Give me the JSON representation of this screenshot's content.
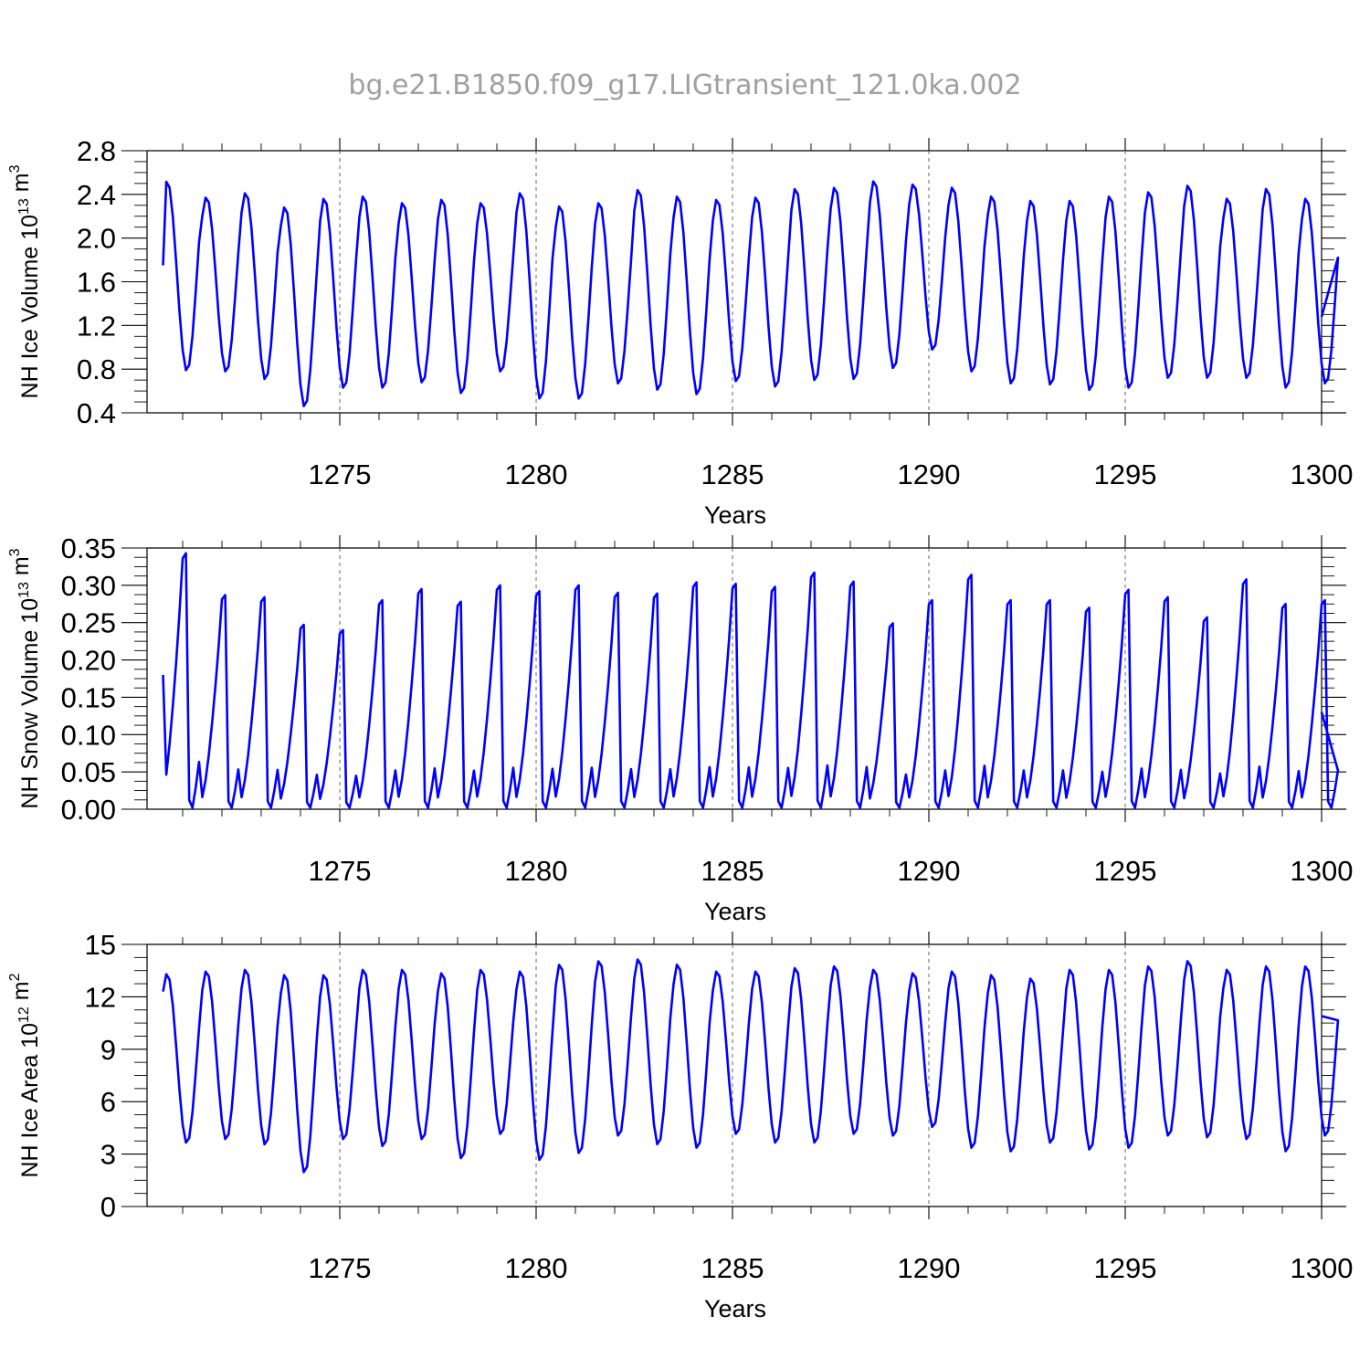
{
  "title": "bg.e21.B1850.f09_g17.LIGtransient_121.0ka.002",
  "chart_data": [
    {
      "type": "line",
      "ylabel_main": "NH Ice Volume 10",
      "ylabel_exp": "13",
      "ylabel_unit": " m",
      "ylabel_unit_exp": "3",
      "xlabel": "Years",
      "xlim": [
        1270.5,
        1300.0
      ],
      "ylim": [
        0.4,
        2.8
      ],
      "yticks": [
        0.4,
        0.8,
        1.2,
        1.6,
        2.0,
        2.4,
        2.8
      ],
      "ytick_labels": [
        "0.4",
        "0.8",
        "1.2",
        "1.6",
        "2.0",
        "2.4",
        "2.8"
      ],
      "xticks": [
        1275,
        1280,
        1285,
        1290,
        1295,
        1300
      ],
      "xtick_labels": [
        "1275",
        "1280",
        "1285",
        "1290",
        "1295",
        "1300"
      ],
      "grid": "dashed vertical lines at labeled years",
      "series_color": "#0000ff",
      "start_value": 1.75,
      "end_value": 1.28,
      "annual_peaks": [
        2.52,
        2.38,
        2.42,
        2.29,
        2.37,
        2.39,
        2.33,
        2.36,
        2.33,
        2.42,
        2.3,
        2.33,
        2.45,
        2.39,
        2.36,
        2.38,
        2.46,
        2.47,
        2.53,
        2.5,
        2.47,
        2.39,
        2.35,
        2.35,
        2.39,
        2.43,
        2.49,
        2.37,
        2.46,
        2.37
      ],
      "annual_troughs": [
        0.78,
        0.77,
        0.7,
        0.45,
        0.62,
        0.62,
        0.67,
        0.57,
        0.77,
        0.52,
        0.52,
        0.66,
        0.6,
        0.56,
        0.68,
        0.63,
        0.69,
        0.7,
        0.8,
        0.97,
        0.77,
        0.66,
        0.65,
        0.6,
        0.62,
        0.71,
        0.71,
        0.71,
        0.62,
        0.66
      ]
    },
    {
      "type": "line",
      "ylabel_main": "NH Snow Volume 10",
      "ylabel_exp": "13",
      "ylabel_unit": " m",
      "ylabel_unit_exp": "3",
      "xlabel": "Years",
      "xlim": [
        1270.5,
        1300.0
      ],
      "ylim": [
        0.0,
        0.35
      ],
      "yticks": [
        0.0,
        0.05,
        0.1,
        0.15,
        0.2,
        0.25,
        0.3,
        0.35
      ],
      "ytick_labels": [
        "0.00",
        "0.05",
        "0.10",
        "0.15",
        "0.20",
        "0.25",
        "0.30",
        "0.35"
      ],
      "xticks": [
        1275,
        1280,
        1285,
        1290,
        1295,
        1300
      ],
      "xtick_labels": [
        "1275",
        "1280",
        "1285",
        "1290",
        "1295",
        "1300"
      ],
      "grid": "dashed vertical lines at labeled years",
      "series_color": "#0000ff",
      "start_value": 0.18,
      "end_value": 0.13,
      "annual_peaks": [
        0.343,
        0.287,
        0.284,
        0.247,
        0.24,
        0.28,
        0.295,
        0.278,
        0.3,
        0.292,
        0.3,
        0.29,
        0.289,
        0.304,
        0.302,
        0.298,
        0.317,
        0.305,
        0.249,
        0.28,
        0.314,
        0.28,
        0.28,
        0.27,
        0.294,
        0.284,
        0.257,
        0.308,
        0.275,
        0.28
      ],
      "annual_troughs": [
        0.002,
        0.002,
        0.002,
        0.002,
        0.002,
        0.002,
        0.002,
        0.002,
        0.002,
        0.002,
        0.002,
        0.002,
        0.002,
        0.002,
        0.002,
        0.002,
        0.002,
        0.002,
        0.002,
        0.002,
        0.002,
        0.002,
        0.002,
        0.002,
        0.002,
        0.002,
        0.002,
        0.002,
        0.002,
        0.002
      ]
    },
    {
      "type": "line",
      "ylabel_main": "NH Ice Area 10",
      "ylabel_exp": "12",
      "ylabel_unit": " m",
      "ylabel_unit_exp": "2",
      "xlabel": "Years",
      "xlim": [
        1270.5,
        1300.0
      ],
      "ylim": [
        0,
        15
      ],
      "yticks": [
        0,
        3,
        6,
        9,
        12,
        15
      ],
      "ytick_labels": [
        "0",
        "3",
        "6",
        "9",
        "12",
        "15"
      ],
      "xticks": [
        1275,
        1280,
        1285,
        1290,
        1295,
        1300
      ],
      "xtick_labels": [
        "1275",
        "1280",
        "1285",
        "1290",
        "1295",
        "1300"
      ],
      "grid": "dashed vertical lines at labeled years",
      "series_color": "#0000ff",
      "start_value": 12.3,
      "end_value": 10.9,
      "annual_peaks": [
        13.3,
        13.5,
        13.6,
        13.3,
        13.3,
        13.6,
        13.6,
        13.4,
        13.6,
        13.5,
        13.9,
        14.1,
        14.2,
        13.9,
        13.5,
        13.5,
        13.7,
        13.8,
        13.6,
        13.4,
        13.5,
        13.3,
        13.1,
        13.6,
        13.6,
        13.8,
        14.1,
        13.6,
        13.8,
        13.8
      ],
      "annual_troughs": [
        3.6,
        3.8,
        3.5,
        1.9,
        3.8,
        3.4,
        3.8,
        2.7,
        4.1,
        2.6,
        3.0,
        4.0,
        3.5,
        3.3,
        4.1,
        3.6,
        3.6,
        4.1,
        4.0,
        4.5,
        3.3,
        3.1,
        3.6,
        3.2,
        3.3,
        4.0,
        3.9,
        3.8,
        3.1,
        4.0
      ]
    }
  ]
}
